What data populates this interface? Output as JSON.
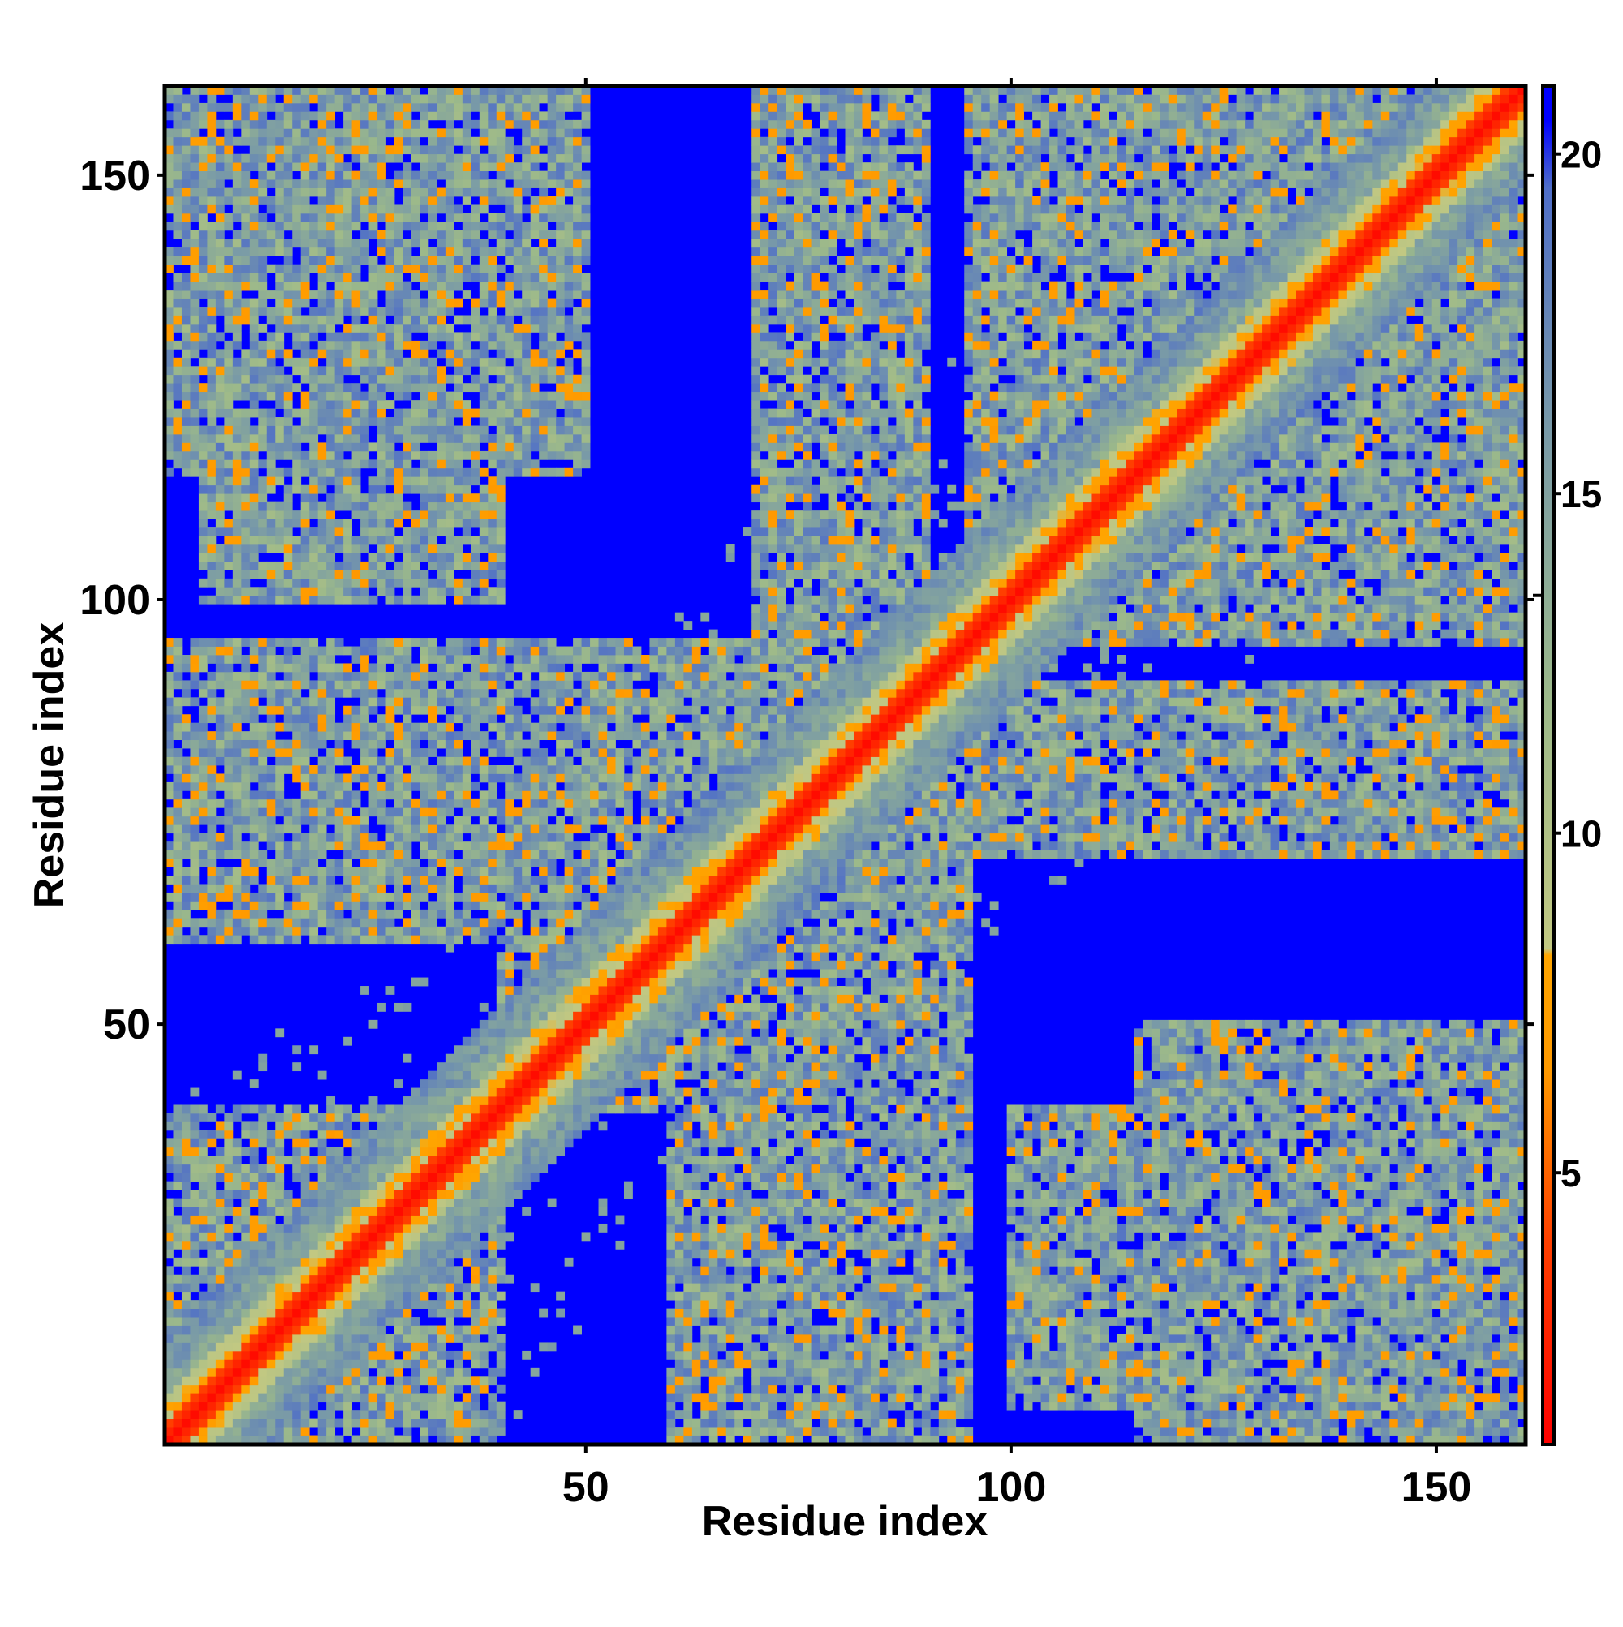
{
  "chart_data": {
    "type": "heatmap",
    "title": "",
    "xlabel": "Residue index",
    "ylabel": "Residue index",
    "n_residues": 160,
    "xlim": [
      1,
      160
    ],
    "ylim": [
      1,
      160
    ],
    "x_ticks": [
      50,
      100,
      150
    ],
    "y_ticks": [
      50,
      100,
      150
    ],
    "x_tick_labels": [
      "50",
      "100",
      "150"
    ],
    "y_tick_labels": [
      "50",
      "100",
      "150"
    ],
    "colorbar": {
      "range": [
        1,
        21
      ],
      "ticks": [
        5,
        10,
        15,
        20
      ],
      "tick_labels": [
        "5",
        "10",
        "15",
        "20"
      ],
      "stops": [
        {
          "value": 1,
          "color": "#ff0000"
        },
        {
          "value": 4,
          "color": "#ff4000"
        },
        {
          "value": 6.5,
          "color": "#ff9900"
        },
        {
          "value": 8.2,
          "color": "#ffa500"
        },
        {
          "value": 8.3,
          "color": "#c2c882"
        },
        {
          "value": 12,
          "color": "#9cb98a"
        },
        {
          "value": 16,
          "color": "#7899a8"
        },
        {
          "value": 19.5,
          "color": "#4f6ec8"
        },
        {
          "value": 20.5,
          "color": "#0000ff"
        },
        {
          "value": 21,
          "color": "#0000ff"
        }
      ]
    },
    "contact_regions": [
      {
        "x": [
          1,
          40
        ],
        "y": [
          1,
          40
        ]
      },
      {
        "x": [
          40,
          95
        ],
        "y": [
          40,
          95
        ]
      },
      {
        "x": [
          95,
          160
        ],
        "y": [
          95,
          160
        ]
      },
      {
        "x": [
          1,
          60
        ],
        "y": [
          60,
          95
        ]
      },
      {
        "x": [
          60,
          95
        ],
        "y": [
          1,
          60
        ]
      },
      {
        "x": [
          1,
          50
        ],
        "y": [
          115,
          160
        ]
      },
      {
        "x": [
          115,
          160
        ],
        "y": [
          1,
          50
        ]
      },
      {
        "x": [
          70,
          90
        ],
        "y": [
          95,
          160
        ]
      },
      {
        "x": [
          95,
          160
        ],
        "y": [
          70,
          90
        ]
      },
      {
        "x": [
          100,
          140
        ],
        "y": [
          5,
          40
        ]
      },
      {
        "x": [
          5,
          40
        ],
        "y": [
          100,
          140
        ]
      }
    ],
    "background_value": 21
  }
}
